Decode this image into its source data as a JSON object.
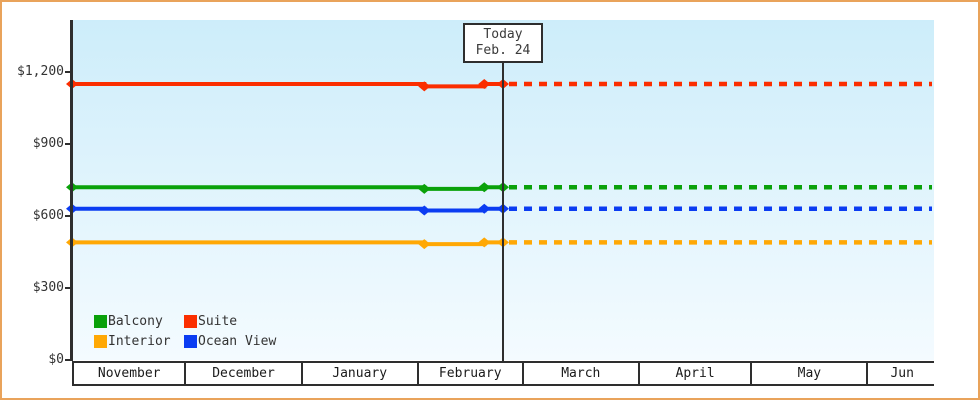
{
  "chart_data": {
    "type": "line",
    "title": "",
    "description": "Cabin price history by category with dotted forecast after today",
    "today": {
      "line1": "Today",
      "line2": "Feb. 24",
      "day_index": 115
    },
    "x_axis": {
      "total_days": 230,
      "months": [
        {
          "label": "November",
          "days": 30
        },
        {
          "label": "December",
          "days": 31
        },
        {
          "label": "January",
          "days": 31
        },
        {
          "label": "February",
          "days": 28
        },
        {
          "label": "March",
          "days": 31
        },
        {
          "label": "April",
          "days": 30
        },
        {
          "label": "May",
          "days": 31
        },
        {
          "label": "Jun",
          "days": 18
        }
      ]
    },
    "y_axis": {
      "ticks": [
        {
          "label": "$1,200",
          "value": 1200
        },
        {
          "label": "$900",
          "value": 900
        },
        {
          "label": "$600",
          "value": 600
        },
        {
          "label": "$300",
          "value": 300
        },
        {
          "label": "$0",
          "value": 0
        }
      ],
      "ylim": [
        0,
        1416
      ],
      "grid": false
    },
    "series": [
      {
        "name": "Suite",
        "color": "#fb2e00",
        "points": [
          {
            "day": 0,
            "value": 1150
          },
          {
            "day": 94,
            "value": 1140
          },
          {
            "day": 110,
            "value": 1150
          },
          {
            "day": 115,
            "value": 1150
          }
        ],
        "forecast_value": 1150
      },
      {
        "name": "Balcony",
        "color": "#0aa10a",
        "points": [
          {
            "day": 0,
            "value": 720
          },
          {
            "day": 94,
            "value": 713
          },
          {
            "day": 110,
            "value": 720
          },
          {
            "day": 115,
            "value": 720
          }
        ],
        "forecast_value": 720
      },
      {
        "name": "Ocean View",
        "color": "#0b3cf2",
        "points": [
          {
            "day": 0,
            "value": 630
          },
          {
            "day": 94,
            "value": 623
          },
          {
            "day": 110,
            "value": 630
          },
          {
            "day": 115,
            "value": 630
          }
        ],
        "forecast_value": 630
      },
      {
        "name": "Interior",
        "color": "#ffa805",
        "points": [
          {
            "day": 0,
            "value": 490
          },
          {
            "day": 94,
            "value": 483
          },
          {
            "day": 110,
            "value": 490
          },
          {
            "day": 115,
            "value": 490
          }
        ],
        "forecast_value": 490
      }
    ],
    "legend": {
      "position": "inside-bottom-left",
      "rows": [
        [
          "Balcony",
          "Suite"
        ],
        [
          "Interior",
          "Ocean View"
        ]
      ]
    }
  },
  "colors": {
    "frame_border": "#e9a35b",
    "axis": "#2e2e2e",
    "plot_bg_top": "#cdedfa",
    "plot_bg_bottom": "#f4fbff",
    "text": "#333333",
    "today_box_bg": "#ffffff"
  }
}
